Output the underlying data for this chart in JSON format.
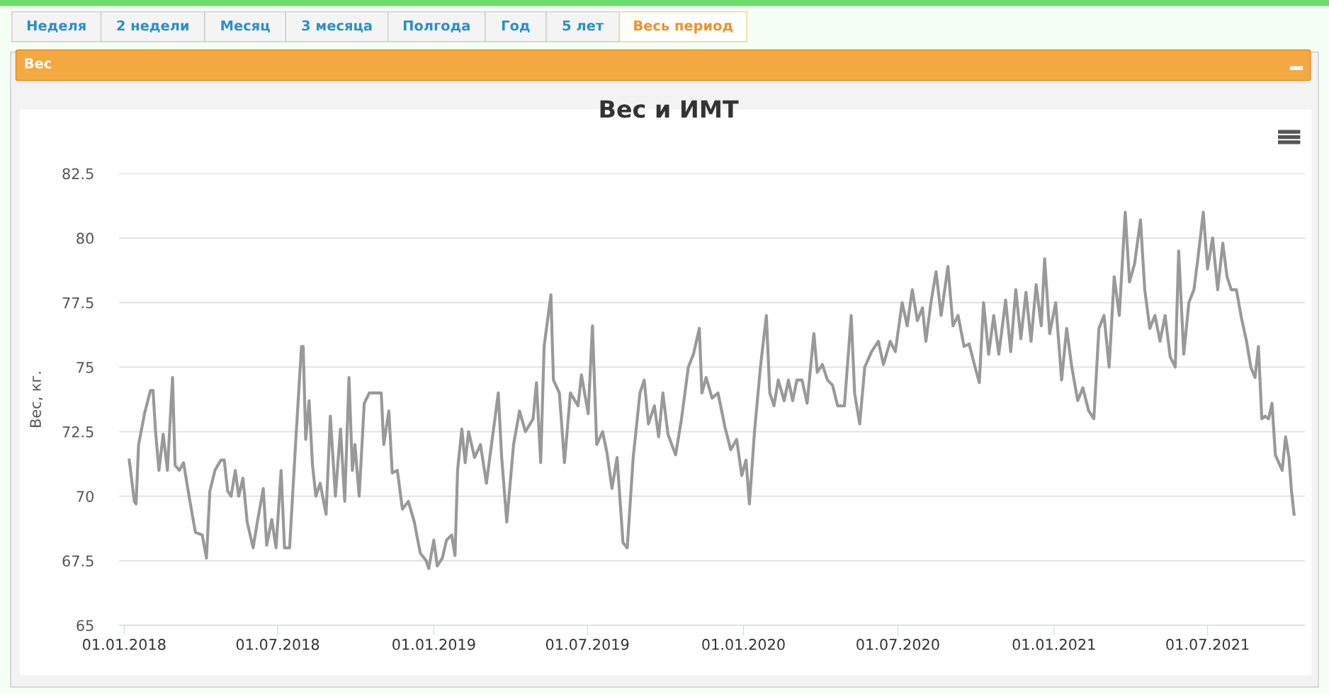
{
  "chart_data": {
    "type": "line",
    "title": "Вес и ИМТ",
    "ylabel": "Вес, кг.",
    "annotations": [
      "Неделя",
      "2 недели",
      "Месяц",
      "3 месяца",
      "Полгода",
      "Год",
      "5 лет",
      "Весь период",
      "Вес"
    ],
    "xlim": [
      "2017-12-26",
      "2021-10-24"
    ],
    "xticks": [
      {
        "value": "2018-01-01",
        "label": "01.01.2018"
      },
      {
        "value": "2018-07-01",
        "label": "01.07.2018"
      },
      {
        "value": "2019-01-01",
        "label": "01.01.2019"
      },
      {
        "value": "2019-07-01",
        "label": "01.07.2019"
      },
      {
        "value": "2020-01-01",
        "label": "01.01.2020"
      },
      {
        "value": "2020-07-01",
        "label": "01.07.2020"
      },
      {
        "value": "2021-01-01",
        "label": "01.01.2021"
      },
      {
        "value": "2021-07-01",
        "label": "01.07.2021"
      }
    ],
    "ylim": [
      65,
      82.5
    ],
    "yticks": [
      65,
      67.5,
      70,
      72.5,
      75,
      77.5,
      80,
      82.5
    ],
    "grid": "y",
    "marker": "none",
    "line_style": "solid",
    "x": [
      "2018-01-07",
      "2018-01-13",
      "2018-01-15",
      "2018-01-18",
      "2018-01-25",
      "2018-02-01",
      "2018-02-04",
      "2018-02-07",
      "2018-02-11",
      "2018-02-16",
      "2018-02-21",
      "2018-02-27",
      "2018-03-02",
      "2018-03-07",
      "2018-03-12",
      "2018-03-19",
      "2018-03-26",
      "2018-04-03",
      "2018-04-08",
      "2018-04-12",
      "2018-04-18",
      "2018-04-25",
      "2018-04-29",
      "2018-05-03",
      "2018-05-07",
      "2018-05-12",
      "2018-05-16",
      "2018-05-21",
      "2018-05-26",
      "2018-06-02",
      "2018-06-07",
      "2018-06-14",
      "2018-06-18",
      "2018-06-24",
      "2018-06-29",
      "2018-07-05",
      "2018-07-09",
      "2018-07-15",
      "2018-07-22",
      "2018-07-29",
      "2018-07-31",
      "2018-08-03",
      "2018-08-07",
      "2018-08-11",
      "2018-08-15",
      "2018-08-20",
      "2018-08-27",
      "2018-09-01",
      "2018-09-07",
      "2018-09-13",
      "2018-09-18",
      "2018-09-23",
      "2018-09-27",
      "2018-09-30",
      "2018-10-05",
      "2018-10-11",
      "2018-10-17",
      "2018-10-31",
      "2018-11-03",
      "2018-11-09",
      "2018-11-13",
      "2018-11-19",
      "2018-11-25",
      "2018-12-02",
      "2018-12-09",
      "2018-12-16",
      "2018-12-23",
      "2018-12-26",
      "2019-01-01",
      "2019-01-05",
      "2019-01-11",
      "2019-01-16",
      "2019-01-22",
      "2019-01-26",
      "2019-01-29",
      "2019-02-03",
      "2019-02-07",
      "2019-02-11",
      "2019-02-18",
      "2019-02-25",
      "2019-03-04",
      "2019-03-10",
      "2019-03-18",
      "2019-03-22",
      "2019-03-28",
      "2019-04-05",
      "2019-04-12",
      "2019-04-19",
      "2019-04-28",
      "2019-05-02",
      "2019-05-07",
      "2019-05-11",
      "2019-05-19",
      "2019-05-22",
      "2019-05-29",
      "2019-06-04",
      "2019-06-11",
      "2019-06-20",
      "2019-06-24",
      "2019-07-02",
      "2019-07-07",
      "2019-07-12",
      "2019-07-19",
      "2019-07-24",
      "2019-07-30",
      "2019-08-05",
      "2019-08-12",
      "2019-08-17",
      "2019-08-24",
      "2019-09-01",
      "2019-09-06",
      "2019-09-11",
      "2019-09-18",
      "2019-09-23",
      "2019-09-28",
      "2019-10-04",
      "2019-10-13",
      "2019-10-20",
      "2019-10-28",
      "2019-11-03",
      "2019-11-10",
      "2019-11-13",
      "2019-11-18",
      "2019-11-25",
      "2019-12-02",
      "2019-12-10",
      "2019-12-17",
      "2019-12-24",
      "2019-12-30",
      "2020-01-04",
      "2020-01-08",
      "2020-01-14",
      "2020-01-21",
      "2020-01-28",
      "2020-02-01",
      "2020-02-06",
      "2020-02-11",
      "2020-02-18",
      "2020-02-23",
      "2020-02-28",
      "2020-03-04",
      "2020-03-10",
      "2020-03-16",
      "2020-03-24",
      "2020-03-28",
      "2020-04-03",
      "2020-04-09",
      "2020-04-15",
      "2020-04-21",
      "2020-04-29",
      "2020-05-07",
      "2020-05-11",
      "2020-05-17",
      "2020-05-23",
      "2020-05-31",
      "2020-06-08",
      "2020-06-14",
      "2020-06-22",
      "2020-06-28",
      "2020-07-06",
      "2020-07-12",
      "2020-07-18",
      "2020-07-24",
      "2020-07-30",
      "2020-08-03",
      "2020-08-09",
      "2020-08-15",
      "2020-08-21",
      "2020-08-29",
      "2020-09-04",
      "2020-09-10",
      "2020-09-17",
      "2020-09-23",
      "2020-09-30",
      "2020-10-05",
      "2020-10-10",
      "2020-10-16",
      "2020-10-22",
      "2020-10-28",
      "2020-11-05",
      "2020-11-11",
      "2020-11-17",
      "2020-11-23",
      "2020-11-29",
      "2020-12-05",
      "2020-12-11",
      "2020-12-17",
      "2020-12-21",
      "2020-12-27",
      "2021-01-03",
      "2021-01-10",
      "2021-01-16",
      "2021-01-22",
      "2021-01-29",
      "2021-02-04",
      "2021-02-11",
      "2021-02-17",
      "2021-02-23",
      "2021-03-01",
      "2021-03-07",
      "2021-03-13",
      "2021-03-19",
      "2021-03-26",
      "2021-03-31",
      "2021-04-06",
      "2021-04-13",
      "2021-04-18",
      "2021-04-24",
      "2021-04-30",
      "2021-05-06",
      "2021-05-12",
      "2021-05-18",
      "2021-05-24",
      "2021-05-28",
      "2021-06-03",
      "2021-06-09",
      "2021-06-15",
      "2021-06-20",
      "2021-06-26",
      "2021-07-01",
      "2021-07-07",
      "2021-07-13",
      "2021-07-19",
      "2021-07-24",
      "2021-07-29",
      "2021-08-04",
      "2021-08-10",
      "2021-08-16",
      "2021-08-21",
      "2021-08-26",
      "2021-08-30",
      "2021-09-03",
      "2021-09-07",
      "2021-09-11",
      "2021-09-15",
      "2021-09-19",
      "2021-09-23",
      "2021-09-27",
      "2021-10-01",
      "2021-10-05",
      "2021-10-08",
      "2021-10-11"
    ],
    "series": [
      {
        "color": "#999999",
        "values": [
          71.4,
          69.8,
          69.7,
          72.0,
          73.2,
          74.1,
          74.1,
          72.5,
          71.0,
          72.4,
          71.0,
          74.6,
          71.2,
          71.0,
          71.3,
          69.9,
          68.6,
          68.5,
          67.6,
          70.2,
          71.0,
          71.4,
          71.4,
          70.2,
          70.0,
          71.0,
          70.0,
          70.7,
          69.0,
          68.0,
          69.0,
          70.3,
          68.1,
          69.1,
          68.0,
          71.0,
          68.0,
          68.0,
          72.0,
          75.8,
          75.8,
          72.2,
          73.7,
          71.2,
          70.0,
          70.5,
          69.3,
          73.1,
          70.0,
          72.6,
          69.8,
          74.6,
          71.0,
          72.0,
          70.0,
          73.6,
          74.0,
          74.0,
          72.0,
          73.3,
          70.9,
          71.0,
          69.5,
          69.8,
          69.0,
          67.8,
          67.5,
          67.2,
          68.3,
          67.3,
          67.6,
          68.3,
          68.5,
          67.7,
          71.0,
          72.6,
          71.3,
          72.5,
          71.5,
          72.0,
          70.5,
          72.0,
          74.0,
          71.5,
          69.0,
          72.0,
          73.3,
          72.5,
          73.0,
          74.4,
          71.3,
          75.8,
          77.8,
          74.5,
          74.0,
          71.3,
          74.0,
          73.5,
          74.7,
          73.2,
          76.6,
          72.0,
          72.5,
          71.7,
          70.3,
          71.5,
          68.2,
          68.0,
          71.5,
          74.0,
          74.5,
          72.8,
          73.5,
          72.3,
          74.0,
          72.4,
          71.6,
          73.0,
          75.0,
          75.5,
          76.5,
          74.0,
          74.6,
          73.8,
          74.0,
          72.7,
          71.8,
          72.2,
          70.8,
          71.4,
          69.7,
          72.5,
          75.0,
          77.0,
          74.0,
          73.5,
          74.5,
          73.7,
          74.5,
          73.7,
          74.5,
          74.5,
          73.6,
          76.3,
          74.8,
          75.1,
          74.5,
          74.3,
          73.5,
          73.5,
          77.0,
          74.0,
          72.8,
          75.0,
          75.6,
          76.0,
          75.1,
          76.0,
          75.6,
          77.5,
          76.6,
          78.0,
          76.8,
          77.3,
          76.0,
          77.5,
          78.7,
          77.0,
          78.9,
          76.6,
          77.0,
          75.8,
          75.9,
          75.0,
          74.4,
          77.5,
          75.5,
          77.0,
          75.5,
          77.6,
          75.6,
          78.0,
          76.1,
          77.9,
          76.0,
          78.2,
          76.6,
          79.2,
          76.3,
          77.5,
          74.5,
          76.5,
          75.0,
          73.7,
          74.2,
          73.3,
          73.0,
          76.5,
          77.0,
          75.0,
          78.5,
          77.0,
          81.0,
          78.3,
          79.0,
          80.7,
          78.0,
          76.5,
          77.0,
          76.0,
          77.0,
          75.4,
          75.0,
          79.5,
          75.5,
          77.5,
          78.0,
          79.3,
          81.0,
          78.8,
          80.0,
          78.0,
          79.8,
          78.5,
          78.0,
          78.0,
          76.9,
          76.0,
          75.0,
          74.6,
          75.8,
          73.0,
          73.1,
          73.0,
          73.6,
          71.6,
          71.3,
          71.0,
          72.3,
          71.5,
          70.2,
          69.3
        ]
      }
    ]
  }
}
